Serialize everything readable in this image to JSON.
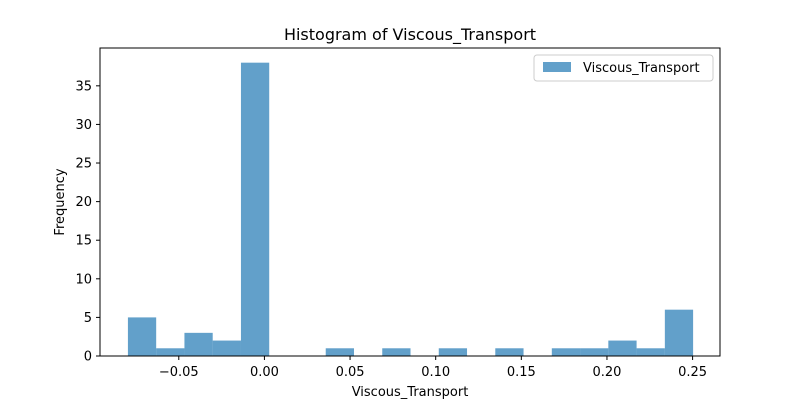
{
  "chart_data": {
    "type": "bar",
    "title": "Histogram of Viscous_Transport",
    "xlabel": "Viscous_Transport",
    "ylabel": "Frequency",
    "bin_edges": [
      -0.0797,
      -0.0632,
      -0.0467,
      -0.0302,
      -0.0137,
      0.0028,
      0.0193,
      0.0358,
      0.0523,
      0.0688,
      0.0853,
      0.1018,
      0.1183,
      0.1348,
      0.1513,
      0.1678,
      0.1843,
      0.2008,
      0.2173,
      0.2338,
      0.2503
    ],
    "series": [
      {
        "name": "Viscous_Transport",
        "values": [
          5,
          1,
          3,
          2,
          38,
          0,
          0,
          1,
          0,
          1,
          0,
          1,
          0,
          1,
          0,
          1,
          1,
          2,
          1,
          6
        ]
      }
    ],
    "xlim": [
      -0.096,
      0.266
    ],
    "ylim": [
      0,
      39.9
    ],
    "xticks": [
      {
        "value": -0.05,
        "label": "−0.05"
      },
      {
        "value": 0.0,
        "label": "0.00"
      },
      {
        "value": 0.05,
        "label": "0.05"
      },
      {
        "value": 0.1,
        "label": "0.10"
      },
      {
        "value": 0.15,
        "label": "0.15"
      },
      {
        "value": 0.2,
        "label": "0.20"
      },
      {
        "value": 0.25,
        "label": "0.25"
      }
    ],
    "yticks": [
      {
        "value": 0,
        "label": "0"
      },
      {
        "value": 5,
        "label": "5"
      },
      {
        "value": 10,
        "label": "10"
      },
      {
        "value": 15,
        "label": "15"
      },
      {
        "value": 20,
        "label": "20"
      },
      {
        "value": 25,
        "label": "25"
      },
      {
        "value": 30,
        "label": "30"
      },
      {
        "value": 35,
        "label": "35"
      }
    ],
    "grid": false,
    "legend_position": "top-right",
    "bar_color": "#1f77b4",
    "bar_opacity": 0.7
  }
}
